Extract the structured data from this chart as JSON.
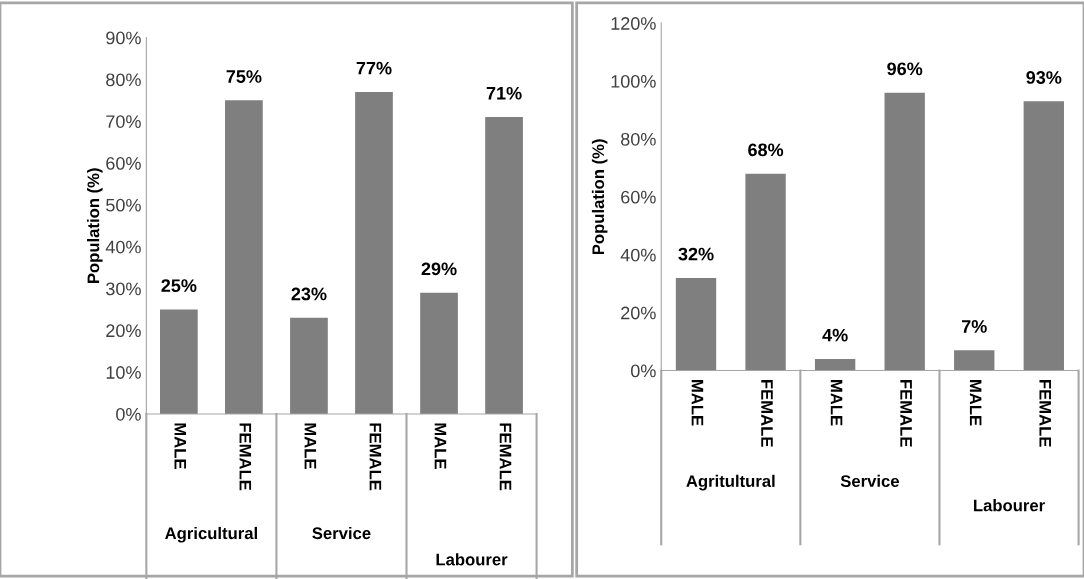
{
  "chart_data": [
    {
      "type": "bar",
      "ylabel": "Population (%)",
      "categories": [
        "MALE",
        "FEMALE",
        "MALE",
        "FEMALE",
        "MALE",
        "FEMALE"
      ],
      "values": [
        25,
        75,
        23,
        77,
        29,
        71
      ],
      "color": "#7f7f7f",
      "value_labels": [
        "25%",
        "75%",
        "23%",
        "77%",
        "29%",
        "71%"
      ],
      "annotations": [
        "Agricultural",
        "Service",
        "Labourer"
      ],
      "ylim": [
        0,
        90
      ],
      "yticks": [
        {
          "value": 0,
          "label": "0%"
        },
        {
          "value": 10,
          "label": "10%"
        },
        {
          "value": 20,
          "label": "20%"
        },
        {
          "value": 30,
          "label": "30%"
        },
        {
          "value": 40,
          "label": "40%"
        },
        {
          "value": 50,
          "label": "50%"
        },
        {
          "value": 60,
          "label": "60%"
        },
        {
          "value": 70,
          "label": "70%"
        },
        {
          "value": 80,
          "label": "80%"
        },
        {
          "value": 90,
          "label": "90%"
        }
      ],
      "grid": false,
      "legend": false
    },
    {
      "type": "bar",
      "ylabel": "Population (%)",
      "categories": [
        "MALE",
        "FEMALE",
        "MALE",
        "FEMALE",
        "MALE",
        "FEMALE"
      ],
      "values": [
        32,
        68,
        4,
        96,
        7,
        93
      ],
      "color": "#7f7f7f",
      "value_labels": [
        "32%",
        "68%",
        "4%",
        "96%",
        "7%",
        "93%"
      ],
      "annotations": [
        "Agritultural",
        "Service",
        "Labourer"
      ],
      "ylim": [
        0,
        120
      ],
      "yticks": [
        {
          "value": 0,
          "label": "0%"
        },
        {
          "value": 20,
          "label": "20%"
        },
        {
          "value": 40,
          "label": "40%"
        },
        {
          "value": 60,
          "label": "60%"
        },
        {
          "value": 80,
          "label": "80%"
        },
        {
          "value": 100,
          "label": "100%"
        },
        {
          "value": 120,
          "label": "120%"
        }
      ],
      "grid": false,
      "legend": false
    }
  ]
}
